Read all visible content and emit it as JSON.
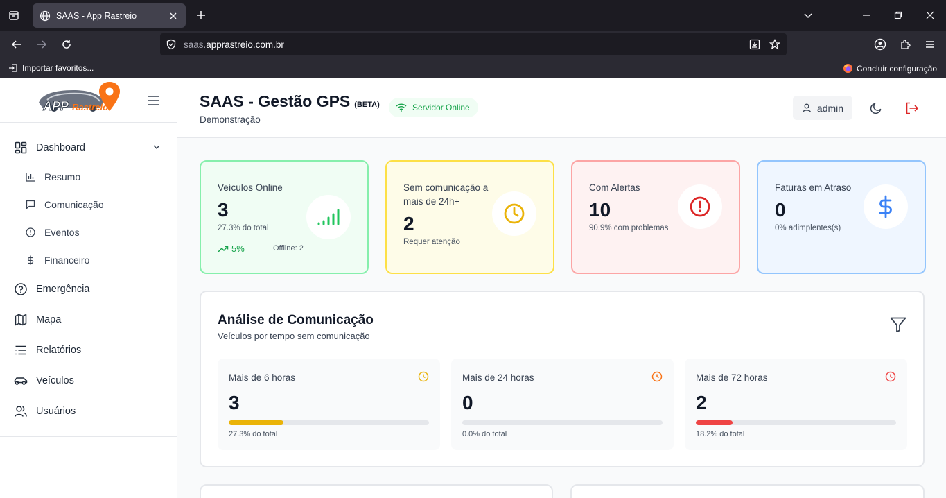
{
  "browser": {
    "tab_title": "SAAS - App Rastreio",
    "url_prefix": "saas.",
    "url_domain": "apprastreio.com.br",
    "bookmark_import": "Importar favoritos...",
    "bookmark_setup": "Concluir configuração"
  },
  "logo": {
    "brand_app": "APP",
    "brand_name": "Rastreio"
  },
  "sidebar": {
    "dashboard": "Dashboard",
    "sub": [
      "Resumo",
      "Comunicação",
      "Eventos",
      "Financeiro"
    ],
    "items": [
      "Emergência",
      "Mapa",
      "Relatórios",
      "Veículos",
      "Usuários"
    ]
  },
  "header": {
    "title": "SAAS - Gestão GPS",
    "beta": "(BETA)",
    "server_status": "Servidor Online",
    "subtitle": "Demonstração",
    "user": "admin"
  },
  "cards": [
    {
      "label": "Veículos Online",
      "value": "3",
      "sub": "27.3% do total",
      "trend": "5%",
      "offline": "Offline: 2",
      "bg": "#f0fdf4",
      "border": "#86efac"
    },
    {
      "label": "Sem comunicação a mais de 24h+",
      "value": "2",
      "sub": "Requer atenção",
      "bg": "#fefce8",
      "border": "#fde047"
    },
    {
      "label": "Com Alertas",
      "value": "10",
      "sub": "90.9% com problemas",
      "bg": "#fef2f2",
      "border": "#fca5a5"
    },
    {
      "label": "Faturas em Atraso",
      "value": "0",
      "sub": "0% adimplentes(s)",
      "bg": "#eff6ff",
      "border": "#93c5fd"
    }
  ],
  "analysis": {
    "title": "Análise de Comunicação",
    "desc": "Veículos por tempo sem comunicação",
    "tiles": [
      {
        "label": "Mais de 6 horas",
        "value": "3",
        "sub": "27.3% do total",
        "pct": 27.3,
        "color": "#eab308"
      },
      {
        "label": "Mais de 24 horas",
        "value": "0",
        "sub": "0.0% do total",
        "pct": 0,
        "color": "#f97316"
      },
      {
        "label": "Mais de 72 horas",
        "value": "2",
        "sub": "18.2% do total",
        "pct": 18.2,
        "color": "#ef4444"
      }
    ]
  }
}
